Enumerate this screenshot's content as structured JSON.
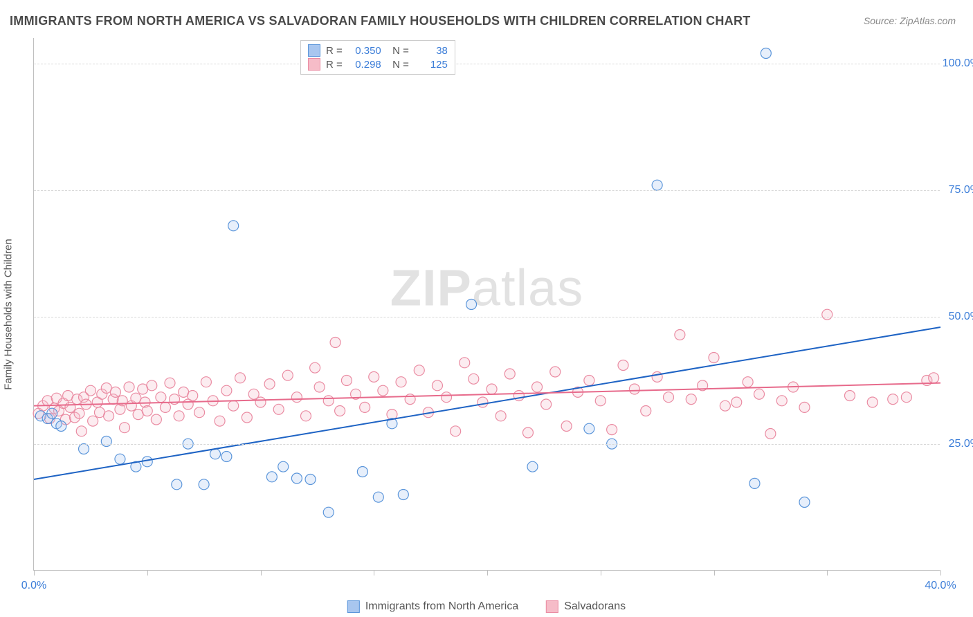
{
  "title": "IMMIGRANTS FROM NORTH AMERICA VS SALVADORAN FAMILY HOUSEHOLDS WITH CHILDREN CORRELATION CHART",
  "source": "Source: ZipAtlas.com",
  "ylabel": "Family Households with Children",
  "watermark_a": "ZIP",
  "watermark_b": "atlas",
  "chart": {
    "type": "scatter",
    "xlim": [
      0,
      40
    ],
    "ylim": [
      0,
      105
    ],
    "xtick_positions": [
      0,
      5,
      10,
      15,
      20,
      25,
      30,
      35,
      40
    ],
    "xtick_labels": {
      "0": "0.0%",
      "40": "40.0%"
    },
    "ytick_positions": [
      25,
      50,
      75,
      100
    ],
    "ytick_labels": [
      "25.0%",
      "50.0%",
      "75.0%",
      "100.0%"
    ],
    "grid_color": "#d8d8d8",
    "axis_color": "#bfbfbf",
    "background_color": "#ffffff",
    "tick_label_color": "#3b7dd8",
    "label_fontsize": 15,
    "tick_fontsize": 16,
    "marker_radius": 7.5,
    "marker_stroke_width": 1.2,
    "marker_fill_opacity": 0.28,
    "trend_line_width": 2
  },
  "series": [
    {
      "name": "Immigrants from North America",
      "fill": "#a8c6ef",
      "stroke": "#5a95da",
      "line_color": "#1e63c4",
      "R": "0.350",
      "N": "38",
      "trend": {
        "x1": 0,
        "y1": 18,
        "x2": 40,
        "y2": 48
      },
      "points": [
        [
          0.3,
          30.5
        ],
        [
          0.6,
          30
        ],
        [
          0.8,
          31
        ],
        [
          1.0,
          29
        ],
        [
          1.2,
          28.5
        ],
        [
          2.2,
          24
        ],
        [
          3.2,
          25.5
        ],
        [
          3.8,
          22
        ],
        [
          4.5,
          20.5
        ],
        [
          5.0,
          21.5
        ],
        [
          6.3,
          17
        ],
        [
          6.8,
          25
        ],
        [
          7.5,
          17
        ],
        [
          8.0,
          23
        ],
        [
          8.5,
          22.5
        ],
        [
          8.8,
          68
        ],
        [
          10.5,
          18.5
        ],
        [
          11.0,
          20.5
        ],
        [
          11.6,
          18.2
        ],
        [
          12.2,
          18
        ],
        [
          13.0,
          11.5
        ],
        [
          14.5,
          19.5
        ],
        [
          15.2,
          14.5
        ],
        [
          15.8,
          29
        ],
        [
          16.3,
          15
        ],
        [
          19.3,
          52.5
        ],
        [
          22.0,
          20.5
        ],
        [
          24.5,
          28
        ],
        [
          25.5,
          25
        ],
        [
          27.5,
          76
        ],
        [
          31.8,
          17.2
        ],
        [
          32.3,
          102
        ],
        [
          34.0,
          13.5
        ]
      ]
    },
    {
      "name": "Salvadorans",
      "fill": "#f6bcc8",
      "stroke": "#ea8ba2",
      "line_color": "#e76a8b",
      "R": "0.298",
      "N": "125",
      "trend": {
        "x1": 0,
        "y1": 32.5,
        "x2": 40,
        "y2": 37
      },
      "points": [
        [
          0.2,
          31
        ],
        [
          0.4,
          32.5
        ],
        [
          0.6,
          33.5
        ],
        [
          0.7,
          30
        ],
        [
          0.9,
          32
        ],
        [
          1.0,
          34
        ],
        [
          1.1,
          31.5
        ],
        [
          1.3,
          33
        ],
        [
          1.4,
          29.8
        ],
        [
          1.5,
          34.5
        ],
        [
          1.6,
          32.2
        ],
        [
          1.8,
          30.2
        ],
        [
          1.9,
          33.8
        ],
        [
          2.0,
          31
        ],
        [
          2.1,
          27.5
        ],
        [
          2.2,
          34.2
        ],
        [
          2.3,
          32.8
        ],
        [
          2.5,
          35.5
        ],
        [
          2.6,
          29.5
        ],
        [
          2.8,
          33.2
        ],
        [
          2.9,
          31.2
        ],
        [
          3.0,
          34.8
        ],
        [
          3.2,
          36
        ],
        [
          3.3,
          30.5
        ],
        [
          3.5,
          33.8
        ],
        [
          3.6,
          35.2
        ],
        [
          3.8,
          31.8
        ],
        [
          3.9,
          33.5
        ],
        [
          4.0,
          28.2
        ],
        [
          4.2,
          36.2
        ],
        [
          4.3,
          32.5
        ],
        [
          4.5,
          34
        ],
        [
          4.6,
          30.8
        ],
        [
          4.8,
          35.8
        ],
        [
          4.9,
          33.2
        ],
        [
          5.0,
          31.5
        ],
        [
          5.2,
          36.5
        ],
        [
          5.4,
          29.8
        ],
        [
          5.6,
          34.2
        ],
        [
          5.8,
          32.2
        ],
        [
          6.0,
          37
        ],
        [
          6.2,
          33.8
        ],
        [
          6.4,
          30.5
        ],
        [
          6.6,
          35.2
        ],
        [
          6.8,
          32.8
        ],
        [
          7.0,
          34.5
        ],
        [
          7.3,
          31.2
        ],
        [
          7.6,
          37.2
        ],
        [
          7.9,
          33.5
        ],
        [
          8.2,
          29.5
        ],
        [
          8.5,
          35.5
        ],
        [
          8.8,
          32.5
        ],
        [
          9.1,
          38
        ],
        [
          9.4,
          30.2
        ],
        [
          9.7,
          34.8
        ],
        [
          10.0,
          33.2
        ],
        [
          10.4,
          36.8
        ],
        [
          10.8,
          31.8
        ],
        [
          11.2,
          38.5
        ],
        [
          11.6,
          34.2
        ],
        [
          12.0,
          30.5
        ],
        [
          12.4,
          40
        ],
        [
          12.6,
          36.2
        ],
        [
          13.0,
          33.5
        ],
        [
          13.3,
          45
        ],
        [
          13.5,
          31.5
        ],
        [
          13.8,
          37.5
        ],
        [
          14.2,
          34.8
        ],
        [
          14.6,
          32.2
        ],
        [
          15.0,
          38.2
        ],
        [
          15.4,
          35.5
        ],
        [
          15.8,
          30.8
        ],
        [
          16.2,
          37.2
        ],
        [
          16.6,
          33.8
        ],
        [
          17.0,
          39.5
        ],
        [
          17.4,
          31.2
        ],
        [
          17.8,
          36.5
        ],
        [
          18.2,
          34.2
        ],
        [
          18.6,
          27.5
        ],
        [
          19.0,
          41
        ],
        [
          19.4,
          37.8
        ],
        [
          19.8,
          33.2
        ],
        [
          20.2,
          35.8
        ],
        [
          20.6,
          30.5
        ],
        [
          21.0,
          38.8
        ],
        [
          21.4,
          34.5
        ],
        [
          21.8,
          27.2
        ],
        [
          22.2,
          36.2
        ],
        [
          22.6,
          32.8
        ],
        [
          23.0,
          39.2
        ],
        [
          23.5,
          28.5
        ],
        [
          24.0,
          35.2
        ],
        [
          24.5,
          37.5
        ],
        [
          25.0,
          33.5
        ],
        [
          25.5,
          27.8
        ],
        [
          26.0,
          40.5
        ],
        [
          26.5,
          35.8
        ],
        [
          27.0,
          31.5
        ],
        [
          27.5,
          38.2
        ],
        [
          28.0,
          34.2
        ],
        [
          28.5,
          46.5
        ],
        [
          29.0,
          33.8
        ],
        [
          29.5,
          36.5
        ],
        [
          30.0,
          42
        ],
        [
          30.5,
          32.5
        ],
        [
          31.0,
          33.2
        ],
        [
          31.5,
          37.2
        ],
        [
          32.0,
          34.8
        ],
        [
          32.5,
          27
        ],
        [
          33.0,
          33.5
        ],
        [
          33.5,
          36.2
        ],
        [
          34.0,
          32.2
        ],
        [
          35.0,
          50.5
        ],
        [
          36.0,
          34.5
        ],
        [
          37.0,
          33.2
        ],
        [
          37.9,
          33.8
        ],
        [
          38.5,
          34.2
        ],
        [
          39.4,
          37.5
        ],
        [
          39.7,
          38
        ]
      ]
    }
  ],
  "legend_top": {
    "R_label": "R =",
    "N_label": "N ="
  },
  "legend_bottom": [
    {
      "label": "Immigrants from North America",
      "series": 0
    },
    {
      "label": "Salvadorans",
      "series": 1
    }
  ]
}
